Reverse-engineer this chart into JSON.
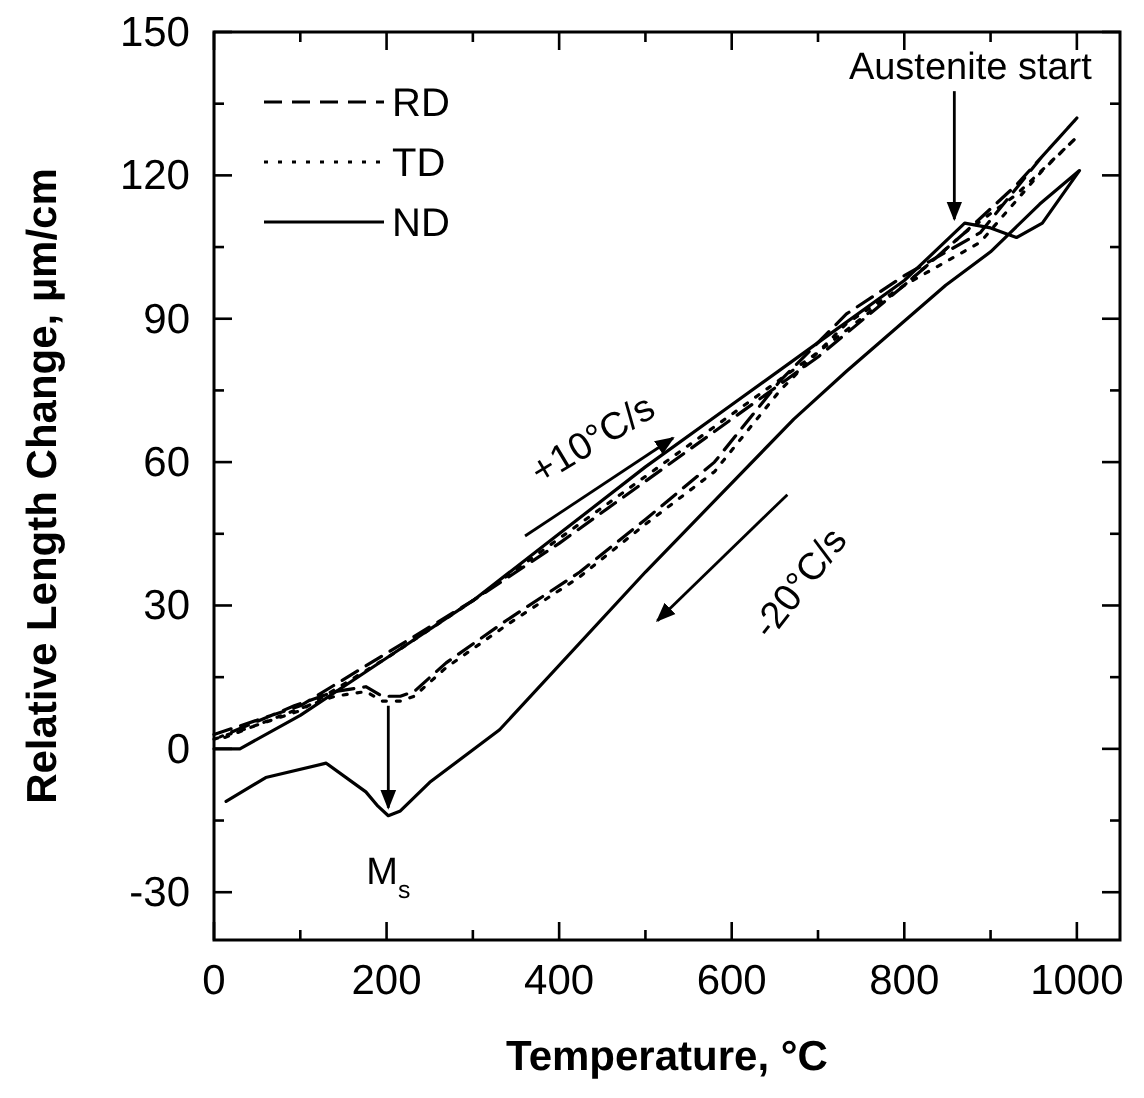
{
  "chart_data": {
    "type": "line",
    "xlabel": "Temperature, °C",
    "ylabel": "Relative Length Change, µm/cm",
    "xlim": [
      0,
      1050
    ],
    "ylim": [
      -40,
      150
    ],
    "xticks": [
      0,
      {
        "value": 100,
        "label": null
      },
      200,
      {
        "value": 300,
        "label": null
      },
      400,
      {
        "value": 500,
        "label": null
      },
      600,
      {
        "value": 700,
        "label": null
      },
      800,
      {
        "value": 900,
        "label": null
      },
      1000
    ],
    "yticks": [
      {
        "value": -30,
        "label": "-30"
      },
      {
        "value": -15,
        "label": null
      },
      0,
      {
        "value": 15,
        "label": null
      },
      30,
      {
        "value": 45,
        "label": null
      },
      60,
      {
        "value": 75,
        "label": null
      },
      90,
      {
        "value": 105,
        "label": null
      },
      120,
      {
        "value": 135,
        "label": null
      },
      150
    ],
    "legend": "top left",
    "grid": false,
    "marker": "none",
    "series": [
      {
        "name": "RD",
        "color": "#000000",
        "line_style": "dashed",
        "x": [
          0,
          100,
          200,
          300,
          400,
          500,
          600,
          700,
          800,
          870,
          930,
          1000,
          960,
          888,
          800,
          733,
          656,
          580,
          500,
          424,
          340,
          269,
          232,
          216,
          195,
          176,
          140,
          93,
          7
        ],
        "values": [
          3,
          9,
          20,
          31,
          43,
          56,
          69,
          82,
          97,
          108,
          118,
          132,
          124,
          108,
          99,
          91,
          77,
          60,
          48,
          37,
          27,
          18,
          12,
          11,
          11,
          13,
          12,
          9,
          2.5
        ]
      },
      {
        "name": "TD",
        "color": "#000000",
        "line_style": "dotted",
        "x": [
          0,
          100,
          200,
          300,
          400,
          500,
          600,
          700,
          800,
          870,
          930,
          1000,
          960,
          888,
          800,
          733,
          656,
          580,
          500,
          424,
          340,
          269,
          232,
          216,
          195,
          176,
          140,
          93,
          7
        ],
        "values": [
          2,
          8,
          19,
          31,
          44,
          57,
          70,
          83,
          97,
          108,
          116,
          128,
          121,
          106,
          97,
          89,
          75,
          58,
          47,
          36,
          26,
          17,
          11,
          10,
          10,
          12,
          11,
          8,
          2
        ]
      },
      {
        "name": "ND",
        "color": "#000000",
        "line_style": "solid",
        "x": [
          0,
          30,
          100,
          200,
          300,
          400,
          500,
          600,
          700,
          800,
          870,
          900,
          930,
          960,
          1003,
          957,
          900,
          848,
          733,
          672,
          500,
          331,
          250,
          216,
          202,
          190,
          176,
          130,
          60,
          14
        ],
        "values": [
          0,
          0,
          7,
          19,
          31,
          45,
          59,
          72,
          85,
          98,
          110,
          109,
          107,
          110,
          121,
          114,
          104,
          97,
          79,
          69,
          37,
          4,
          -7,
          -13,
          -14,
          -12,
          -9,
          -3,
          -6,
          -11
        ]
      }
    ],
    "annotations": [
      {
        "text": "Austenite start",
        "x": 858,
        "y": 110
      },
      {
        "text": "M$_{s}$",
        "x": 202,
        "y": -14
      },
      "+10°C/s",
      "-20°C/s"
    ]
  }
}
